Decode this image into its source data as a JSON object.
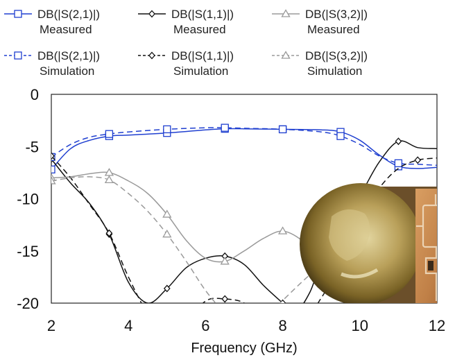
{
  "chart_data": {
    "type": "line",
    "title": "",
    "xlabel": "Frequency (GHz)",
    "ylabel": "",
    "xlim": [
      2,
      12
    ],
    "ylim": [
      -20,
      0
    ],
    "xticks": [
      "2",
      "4",
      "6",
      "8",
      "10",
      "12"
    ],
    "yticks": [
      "0",
      "-5",
      "-10",
      "-15",
      "-20"
    ],
    "grid": false,
    "legend_position": "top",
    "series": [
      {
        "name": "DB(|S(2,1)|) Measured",
        "legend_line1": "DB(|S(2,1)|)",
        "legend_line2": "Measured",
        "color": "#1f3fd0",
        "dash": "solid",
        "marker": "square",
        "x": [
          2,
          2.5,
          3,
          3.5,
          4,
          5,
          6,
          6.5,
          7,
          8,
          9,
          9.5,
          10,
          10.5,
          11,
          11.5,
          12
        ],
        "y": [
          -7.2,
          -5.2,
          -4.4,
          -4.0,
          -3.9,
          -3.7,
          -3.4,
          -3.3,
          -3.3,
          -3.35,
          -3.4,
          -3.6,
          -4.4,
          -5.8,
          -6.9,
          -7.1,
          -7.0
        ],
        "markers_x": [
          2,
          3.5,
          5,
          6.5,
          8,
          9.5,
          11
        ]
      },
      {
        "name": "DB(|S(1,1)|) Measured",
        "legend_line1": "DB(|S(1,1)|)",
        "legend_line2": "Measured",
        "color": "#111111",
        "dash": "solid",
        "marker": "diamond",
        "x": [
          2,
          2.5,
          3,
          3.5,
          4,
          4.5,
          5,
          5.5,
          6,
          6.5,
          7,
          7.5,
          8,
          8.3,
          8.7,
          9,
          9.5,
          10,
          10.5,
          11,
          11.5,
          12
        ],
        "y": [
          -6.2,
          -8.5,
          -10.5,
          -13.4,
          -18.0,
          -20.0,
          -18.6,
          -16.6,
          -15.7,
          -15.5,
          -16.3,
          -18.3,
          -20.0,
          -21.0,
          -19.0,
          -16.0,
          -12.3,
          -9.7,
          -6.5,
          -4.5,
          -5.1,
          -5.2
        ],
        "markers_x": [
          2,
          3.5,
          5,
          6.5,
          8,
          9.5,
          11
        ]
      },
      {
        "name": "DB(|S(3,2)|) Measured",
        "legend_line1": "DB(|S(3,2)|)",
        "legend_line2": "Measured",
        "color": "#9a9a9a",
        "dash": "solid",
        "marker": "triangle",
        "x": [
          2,
          2.5,
          3,
          3.5,
          4,
          4.5,
          5,
          5.5,
          6,
          6.5,
          7,
          7.5,
          8,
          8.5,
          9,
          9.5,
          9.8
        ],
        "y": [
          -8.0,
          -7.9,
          -7.6,
          -7.5,
          -8.3,
          -9.5,
          -11.5,
          -14.0,
          -15.7,
          -16.0,
          -15.0,
          -13.8,
          -13.1,
          -14.0,
          -16.0,
          -18.5,
          -20.0
        ],
        "markers_x": [
          2,
          3.5,
          5,
          6.5,
          8
        ]
      },
      {
        "name": "DB(|S(2,1)|) Simulation",
        "legend_line1": "DB(|S(2,1)|)",
        "legend_line2": "Simulation",
        "color": "#1f3fd0",
        "dash": "dashed",
        "marker": "square",
        "x": [
          2,
          2.5,
          3,
          3.5,
          4,
          5,
          6,
          6.5,
          7,
          8,
          9,
          9.5,
          10,
          10.5,
          11,
          11.5,
          12
        ],
        "y": [
          -6.0,
          -4.8,
          -4.1,
          -3.8,
          -3.6,
          -3.35,
          -3.2,
          -3.2,
          -3.25,
          -3.35,
          -3.6,
          -4.0,
          -4.8,
          -5.9,
          -6.6,
          -6.7,
          -6.8
        ],
        "markers_x": [
          2,
          3.5,
          5,
          6.5,
          8,
          9.5,
          11
        ]
      },
      {
        "name": "DB(|S(1,1)|) Simulation",
        "legend_line1": "DB(|S(1,1)|)",
        "legend_line2": "Simulation",
        "color": "#111111",
        "dash": "dashed",
        "marker": "diamond",
        "x": [
          2,
          2.5,
          3,
          3.5,
          4,
          4.5,
          5,
          5.5,
          6,
          6.5,
          7,
          7.3,
          8.5,
          9,
          9.5,
          10,
          10.5,
          11,
          11.5,
          12
        ],
        "y": [
          -5.9,
          -8.0,
          -10.6,
          -13.3,
          -17.5,
          -21.0,
          -23.0,
          -22.0,
          -19.8,
          -19.6,
          -20.0,
          -21.5,
          -21.5,
          -19.5,
          -16.0,
          -12.0,
          -9.0,
          -7.1,
          -6.3,
          -6.1
        ],
        "markers_x": [
          2,
          3.5,
          6.5,
          10,
          11.5
        ]
      },
      {
        "name": "DB(|S(3,2)|) Simulation",
        "legend_line1": "DB(|S(3,2)|)",
        "legend_line2": "Simulation",
        "color": "#9a9a9a",
        "dash": "dashed",
        "marker": "triangle",
        "x": [
          2,
          2.5,
          3,
          3.5,
          4,
          4.5,
          5,
          5.5,
          6,
          6.5,
          7,
          9,
          9.5,
          10
        ],
        "y": [
          -8.3,
          -8.0,
          -7.9,
          -8.2,
          -9.5,
          -11.2,
          -13.4,
          -16.0,
          -18.8,
          -21.0,
          -23.0,
          -16.5,
          -18.5,
          -20.2
        ],
        "markers_x": [
          2,
          3.5,
          5,
          9.5
        ]
      }
    ]
  },
  "inset_photo": {
    "semantic": "photo-of-fabricated-circuit-next-to-coin"
  }
}
